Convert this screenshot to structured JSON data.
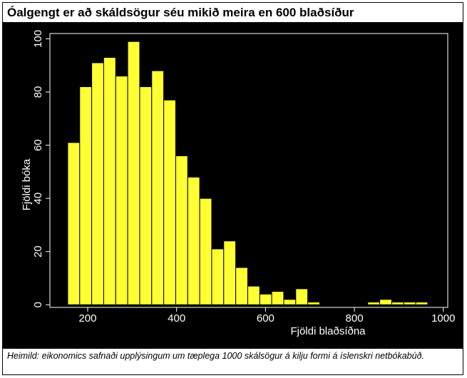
{
  "chart_data": {
    "type": "histogram",
    "title": "Óalgengt er að skáldsögur séu mikið meira en 600 blaðsíður",
    "x_label": "Fjöldi blaðsíðna",
    "y_label": "Fjöldi bóka",
    "caption": "Heimild: eikonomics safnaði upplýsingum um tæplega 1000 skálsögur á kilju formi á íslenskri netbókabúð.",
    "bins": [
      155,
      182,
      209,
      236,
      263,
      290,
      317,
      344,
      371,
      398,
      425,
      452,
      479,
      506,
      533,
      560,
      587,
      614,
      641,
      668,
      695,
      722,
      749,
      776,
      803,
      830,
      857,
      884,
      911,
      938,
      965
    ],
    "values": [
      61,
      82,
      91,
      93,
      86,
      99,
      82,
      88,
      77,
      56,
      48,
      40,
      21,
      24,
      14,
      7,
      4,
      5,
      2,
      6,
      1,
      0,
      0,
      0,
      0,
      1,
      2,
      1,
      1,
      1
    ],
    "color": "#ffff33",
    "xlim": [
      115,
      1010
    ],
    "ylim": [
      -1,
      102
    ],
    "xticks": [
      200,
      400,
      600,
      800,
      1000
    ],
    "yticks": [
      0,
      20,
      40,
      60,
      80,
      100
    ]
  }
}
